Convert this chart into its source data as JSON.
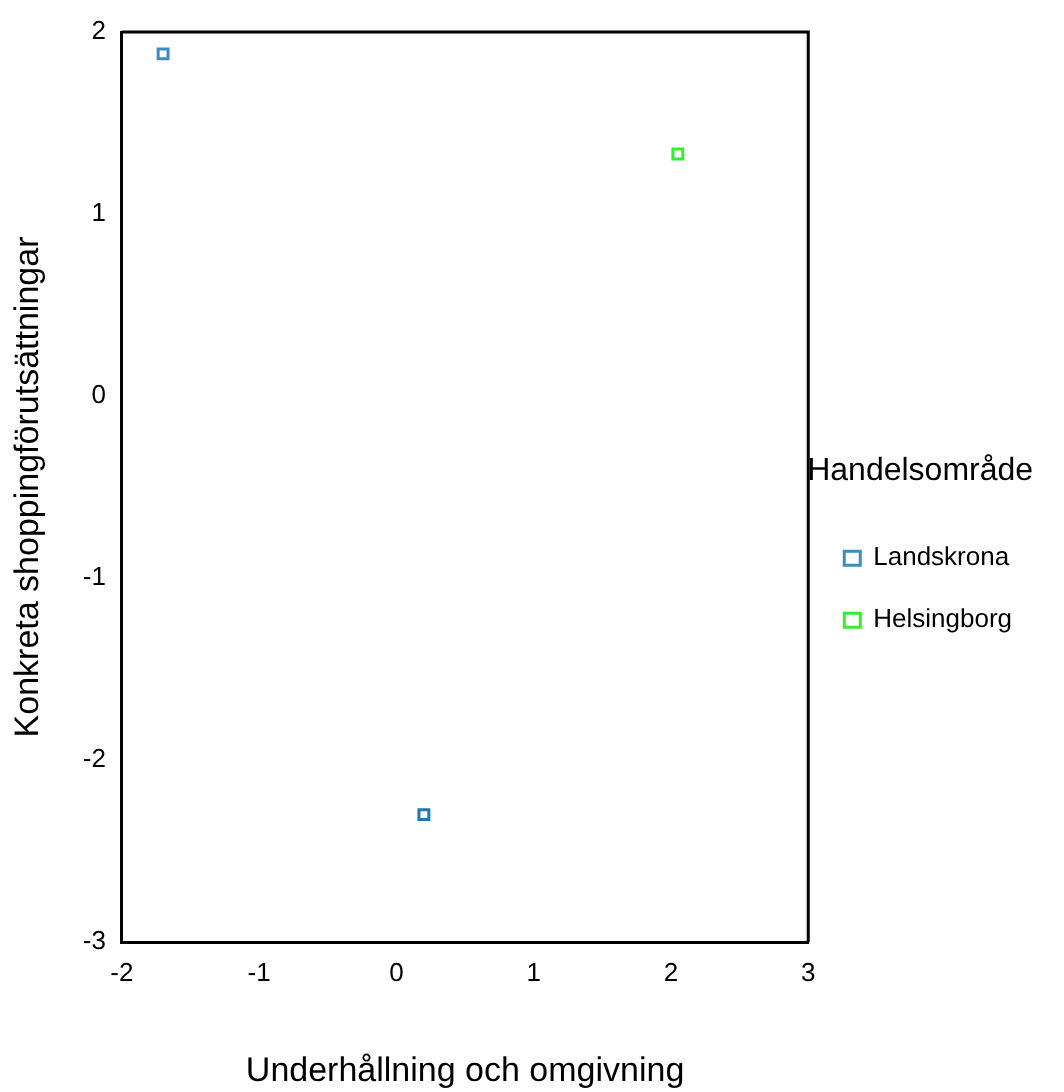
{
  "chart_data": {
    "type": "scatter",
    "xlabel": "Underhållning och omgivning",
    "ylabel": "Konkreta shoppingförutsättningar",
    "legend_title": "Handelsområde",
    "legend": "right",
    "marker": "square",
    "grid": false,
    "xlim": [
      -2,
      3
    ],
    "xticks": [
      -2,
      -1,
      0,
      1,
      2,
      3
    ],
    "ylim": [
      -3,
      2
    ],
    "yticks": [
      -3,
      -2,
      -1,
      0,
      1,
      2
    ],
    "series": [
      {
        "name": "Landskrona",
        "color": "#3a8fc0",
        "x": [
          -1.7
        ],
        "values": [
          1.88
        ]
      },
      {
        "name": "Helsingborg",
        "color": "#33ee33",
        "x": [
          2.05
        ],
        "values": [
          1.33
        ]
      },
      {
        "color": "#1f77b4",
        "x": [
          0.2
        ],
        "values": [
          -2.3
        ]
      }
    ]
  }
}
